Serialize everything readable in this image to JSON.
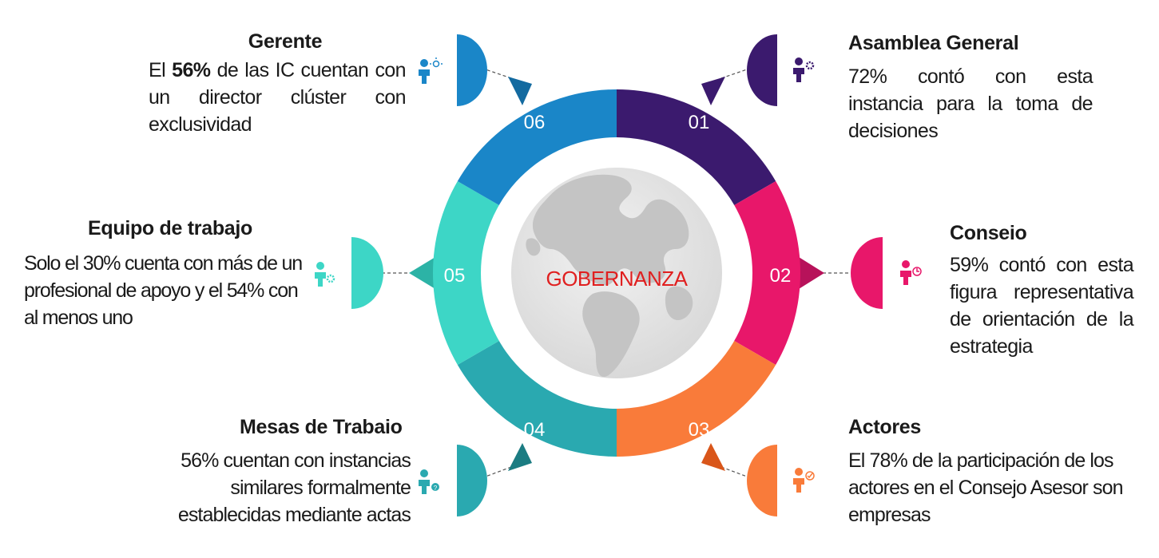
{
  "center_label": "GOBERNANZA",
  "colors": {
    "s01": "#3b1a6e",
    "s02": "#e8176a",
    "s03": "#f97b3a",
    "s04": "#2aa9b0",
    "s05": "#3dd6c6",
    "s06": "#1a86c8",
    "globe": "#cccccc",
    "center_text": "#e02020"
  },
  "segments": [
    {
      "num": "01",
      "title": "Asamblea General",
      "text": "72% contó con esta instancia para la toma de decisiones",
      "icon": "person-gear-icon"
    },
    {
      "num": "02",
      "title": "Conseio",
      "text": "59% contó con esta figura representativa de orientación de la estrategia",
      "icon": "person-chart-icon"
    },
    {
      "num": "03",
      "title": "Actores",
      "text": "El 78% de la participación de los actores en el Consejo Asesor son empresas",
      "icon": "person-check-icon"
    },
    {
      "num": "04",
      "title": "Mesas de Trabaio",
      "text": "56% cuentan con instancias similares formalmente establecidas mediante actas",
      "icon": "person-question-icon"
    },
    {
      "num": "05",
      "title": "Equipo de trabajo",
      "text": "Solo el 30% cuenta con más de un profesional de apoyo y el 54% con al menos uno",
      "icon": "person-cog-icon"
    },
    {
      "num": "06",
      "title": "Gerente",
      "text_prefix": "El",
      "text_bold": "56%",
      "text_rest": "de las IC cuentan con un director clúster con exclusividad",
      "icon": "person-idea-icon"
    }
  ]
}
